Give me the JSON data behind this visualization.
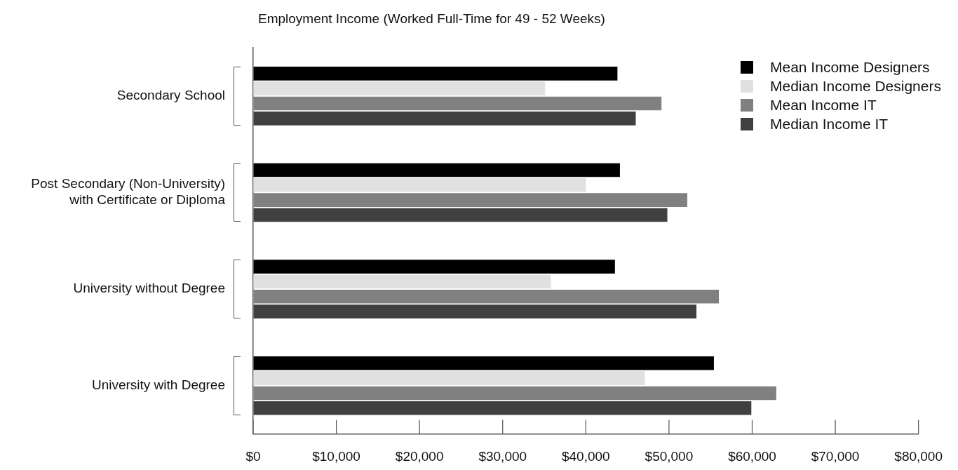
{
  "chart_data": {
    "type": "bar",
    "orientation": "horizontal",
    "title": "Employment Income (Worked Full-Time for 49 - 52 Weeks)",
    "categories": [
      "Secondary School",
      "Post Secondary (Non-University) with Certificate or Diploma",
      "University without Degree",
      "University with Degree"
    ],
    "series": [
      {
        "name": "Mean Income Designers",
        "color": "#000000",
        "values": [
          43800,
          44100,
          43500,
          55400
        ]
      },
      {
        "name": "Median Income Designers",
        "color": "#e0e0e0",
        "values": [
          35100,
          40000,
          35800,
          47100
        ]
      },
      {
        "name": "Mean Income IT",
        "color": "#808080",
        "values": [
          49100,
          52200,
          56000,
          62900
        ]
      },
      {
        "name": "Median Income IT",
        "color": "#404040",
        "values": [
          46000,
          49800,
          53300,
          59900
        ]
      }
    ],
    "xlim": [
      0,
      80000
    ],
    "xticks": [
      {
        "value": 0,
        "label": "$0"
      },
      {
        "value": 10000,
        "label": "$10,000"
      },
      {
        "value": 20000,
        "label": "$20,000"
      },
      {
        "value": 30000,
        "label": "$30,000"
      },
      {
        "value": 40000,
        "label": "$40,000"
      },
      {
        "value": 50000,
        "label": "$50,000"
      },
      {
        "value": 60000,
        "label": "$60,000"
      },
      {
        "value": 70000,
        "label": "$70,000"
      },
      {
        "value": 80000,
        "label": "$80,000"
      }
    ],
    "grid": false,
    "legend": "top right"
  }
}
